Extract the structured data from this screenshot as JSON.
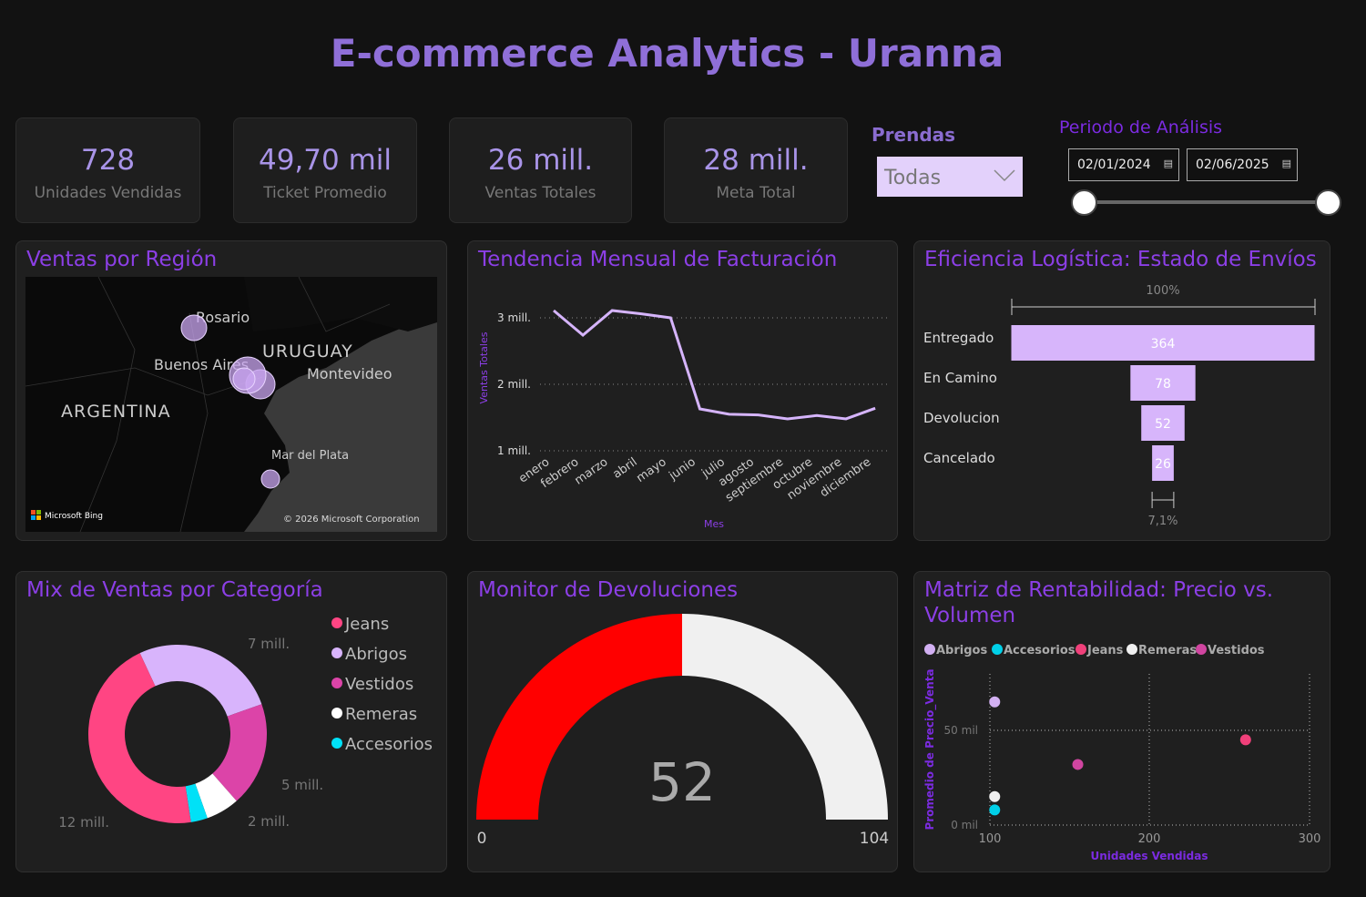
{
  "title": "E-commerce Analytics - Uranna",
  "kpis": [
    {
      "value": "728",
      "label": "Unidades Vendidas"
    },
    {
      "value": "49,70 mil",
      "label": "Ticket Promedio"
    },
    {
      "value": "26 mill.",
      "label": "Ventas Totales"
    },
    {
      "value": "28 mill.",
      "label": "Meta Total"
    }
  ],
  "filters": {
    "prendas_label": "Prendas",
    "prendas_value": "Todas",
    "periodo_label": "Periodo de Análisis",
    "date_start": "02/01/2024",
    "date_end": "02/06/2025",
    "slider_range": [
      0,
      1
    ]
  },
  "map": {
    "title": "Ventas por Región",
    "labels": [
      "Rosario",
      "URUGUAY",
      "Buenos Aires",
      "Montevideo",
      "ARGENTINA",
      "Mar del Plata"
    ],
    "bing": "Microsoft Bing",
    "copyright": "© 2026 Microsoft Corporation"
  },
  "chart_data": [
    {
      "type": "line",
      "title": "Tendencia Mensual de Facturación",
      "xlabel": "Mes",
      "ylabel": "Ventas Totales",
      "categories": [
        "enero",
        "febrero",
        "marzo",
        "abril",
        "mayo",
        "junio",
        "julio",
        "agosto",
        "septiembre",
        "octubre",
        "noviembre",
        "diciembre"
      ],
      "values": [
        3.11,
        2.74,
        3.11,
        3.06,
        3.0,
        1.63,
        1.55,
        1.54,
        1.48,
        1.53,
        1.48,
        1.64
      ],
      "yunit": "mill.",
      "yticks": [
        "1 mill.",
        "2 mill.",
        "3 mill."
      ],
      "ylim": [
        1,
        3
      ],
      "grid": true,
      "color": "#d5b4fb"
    },
    {
      "type": "bar",
      "subtype": "funnel",
      "title": "Eficiencia Logística: Estado de Envíos",
      "categories": [
        "Entregado",
        "En Camino",
        "Devolucion",
        "Cancelado"
      ],
      "values": [
        364,
        78,
        52,
        26
      ],
      "top_label": "100%",
      "bottom_label": "7,1%",
      "color": "#d7b5fb"
    },
    {
      "type": "pie",
      "subtype": "donut",
      "title": "Mix de Ventas por Categoría",
      "categories": [
        "Jeans",
        "Abrigos",
        "Vestidos",
        "Remeras",
        "Accesorios"
      ],
      "values": [
        12,
        7,
        5,
        1.6,
        0.8
      ],
      "data_labels": [
        "12 mill.",
        "7 mill.",
        "5 mill.",
        "2 mill.",
        ""
      ],
      "colors": [
        "#ff4583",
        "#d8b4fc",
        "#dc44a8",
        "#ffffff",
        "#00e1f7"
      ],
      "legend": "right"
    },
    {
      "type": "gauge",
      "title": "Monitor de Devoluciones",
      "value": 52,
      "min": 0,
      "max": 104,
      "value_label": "52",
      "min_label": "0",
      "max_label": "104",
      "fill_color": "#ff0000",
      "track_color": "#f0f0f0"
    },
    {
      "type": "scatter",
      "title": "Matriz de Rentabilidad: Precio vs. Volumen",
      "xlabel": "Unidades Vendidas",
      "ylabel": "Promedio de Precio_Venta",
      "xlim": [
        100,
        300
      ],
      "xticks": [
        "100",
        "200",
        "300"
      ],
      "yticks": [
        "0 mil",
        "50 mil"
      ],
      "grid": true,
      "legend": "top-left",
      "series": [
        {
          "name": "Abrigos",
          "x": 103,
          "y": 65,
          "color": "#d2b0f2"
        },
        {
          "name": "Accesorios",
          "x": 103,
          "y": 8,
          "color": "#00d0e8"
        },
        {
          "name": "Jeans",
          "x": 260,
          "y": 45,
          "color": "#f0407a"
        },
        {
          "name": "Remeras",
          "x": 103,
          "y": 15,
          "color": "#f0f0f0"
        },
        {
          "name": "Vestidos",
          "x": 155,
          "y": 32,
          "color": "#d045a0"
        }
      ]
    }
  ]
}
